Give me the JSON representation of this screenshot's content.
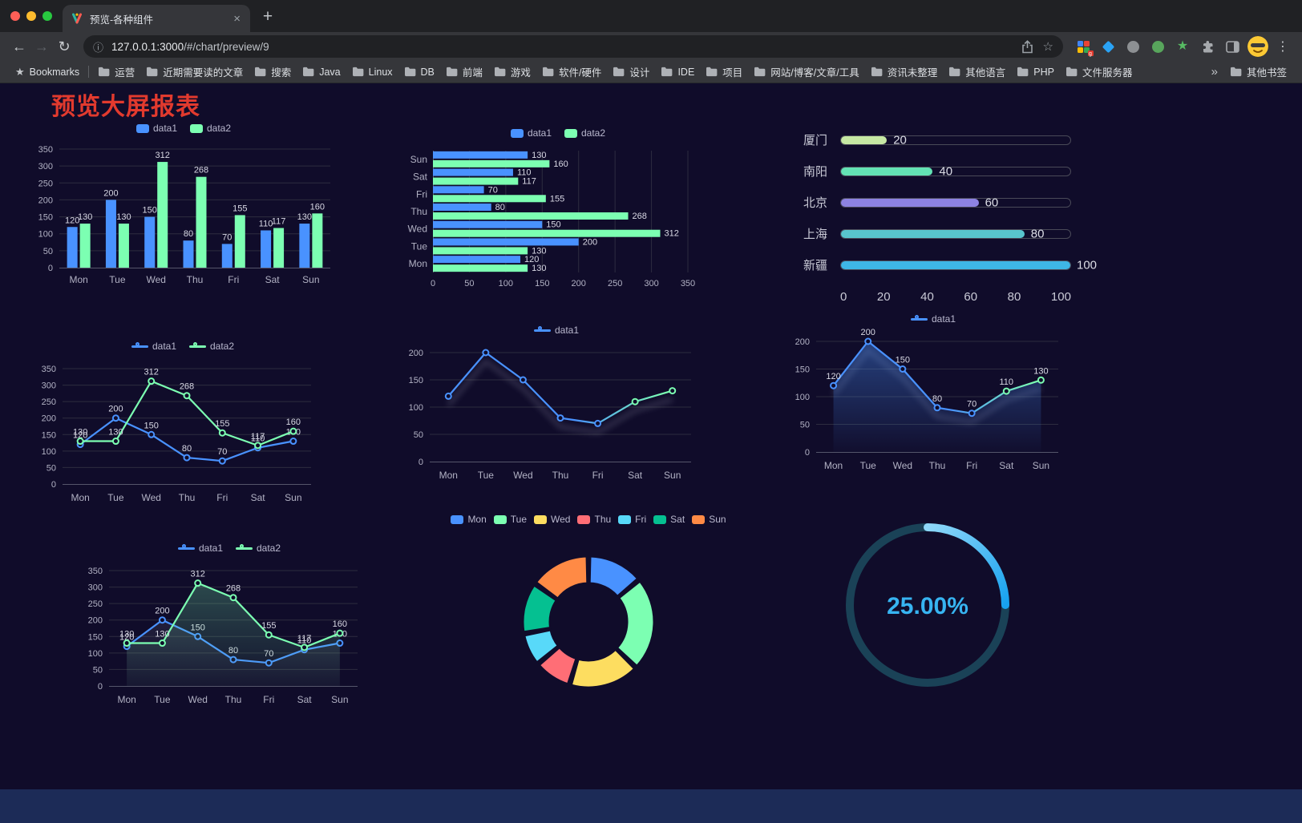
{
  "window": {
    "tab": {
      "title": "预览-各种组件"
    },
    "toolbar": {
      "url_host": "127.0.0.1:3000",
      "url_path": "/#/chart/preview/9",
      "extension_badge": "g"
    },
    "bookmarks_bar": {
      "root_label": "Bookmarks",
      "folders": [
        "运营",
        "近期需要读的文章",
        "搜索",
        "Java",
        "Linux",
        "DB",
        "前端",
        "游戏",
        "软件/硬件",
        "设计",
        "IDE",
        "项目",
        "网站/博客/文章/工具",
        "资讯未整理",
        "其他语言",
        "PHP",
        "文件服务器"
      ],
      "overflow_chevron": "»",
      "other_bookmarks_label": "其他书签"
    }
  },
  "icons": {
    "back": "←",
    "forward": "→",
    "reload": "↻",
    "info": "ⓘ",
    "bookmark_star": "☆",
    "close_tab": "×",
    "new_tab": "+",
    "menu": "⋮",
    "bookmarks_star": "★"
  },
  "page": {
    "title": "预览大屏报表"
  },
  "colors": {
    "title_red": "#e23a2e",
    "page_bg": "#100c2a",
    "footer_band": "#1c2b57",
    "series_blue": "#4992ff",
    "series_green": "#7cffb2",
    "grid": "#2d2c3f",
    "axis_line": "#55556a",
    "axis_text": "#b2b2c4",
    "label_text": "#d8d8e4",
    "legend_text": "#b9b8ce"
  },
  "chart_data": [
    {
      "id": "grouped-bar",
      "type": "bar",
      "orientation": "vertical",
      "categories": [
        "Mon",
        "Tue",
        "Wed",
        "Thu",
        "Fri",
        "Sat",
        "Sun"
      ],
      "series": [
        {
          "name": "data1",
          "color": "#4992ff",
          "values": [
            120,
            200,
            150,
            80,
            70,
            110,
            130
          ]
        },
        {
          "name": "data2",
          "color": "#7cffb2",
          "values": [
            130,
            130,
            312,
            268,
            155,
            117,
            160
          ]
        }
      ],
      "ylim": [
        0,
        350
      ],
      "ytick": 50,
      "legend_position": "top",
      "grid": true
    },
    {
      "id": "horizontal-bar",
      "type": "bar",
      "orientation": "horizontal",
      "categories_top_to_bottom": [
        "Sun",
        "Sat",
        "Fri",
        "Thu",
        "Wed",
        "Tue",
        "Mon"
      ],
      "series": [
        {
          "name": "data1",
          "color": "#4992ff",
          "values": [
            130,
            110,
            70,
            80,
            150,
            200,
            120
          ]
        },
        {
          "name": "data2",
          "color": "#7cffb2",
          "values": [
            160,
            117,
            155,
            268,
            312,
            130,
            130
          ]
        }
      ],
      "xlim": [
        0,
        350
      ],
      "xtick": 50,
      "legend_position": "top",
      "grid": true
    },
    {
      "id": "city-progress",
      "type": "bar",
      "orientation": "horizontal-progress",
      "items": [
        {
          "label": "厦门",
          "value": 20,
          "color": "#c6e8a4"
        },
        {
          "label": "南阳",
          "value": 40,
          "color": "#63e2b4"
        },
        {
          "label": "北京",
          "value": 60,
          "color": "#8d82e2"
        },
        {
          "label": "上海",
          "value": 80,
          "color": "#58c5cd"
        },
        {
          "label": "新疆",
          "value": 100,
          "color": "#3eb6e6"
        }
      ],
      "xlim": [
        0,
        100
      ],
      "ticks": [
        0,
        20,
        40,
        60,
        80,
        100
      ]
    },
    {
      "id": "dual-line",
      "type": "line",
      "categories": [
        "Mon",
        "Tue",
        "Wed",
        "Thu",
        "Fri",
        "Sat",
        "Sun"
      ],
      "series": [
        {
          "name": "data1",
          "color": "#4992ff",
          "values": [
            120,
            200,
            150,
            80,
            70,
            110,
            130
          ],
          "labels": true
        },
        {
          "name": "data2",
          "color": "#7cffb2",
          "values": [
            130,
            130,
            312,
            268,
            155,
            117,
            160
          ],
          "labels": true
        }
      ],
      "ylim": [
        0,
        350
      ],
      "ytick": 50,
      "legend_position": "top",
      "grid": true
    },
    {
      "id": "gradient-line",
      "type": "line",
      "categories": [
        "Mon",
        "Tue",
        "Wed",
        "Thu",
        "Fri",
        "Sat",
        "Sun"
      ],
      "series": [
        {
          "name": "data1",
          "gradient": [
            "#4992ff",
            "#7cffb2"
          ],
          "values": [
            120,
            200,
            150,
            80,
            70,
            110,
            130
          ],
          "labels": false,
          "shadow": true
        }
      ],
      "ylim": [
        0,
        200
      ],
      "ytick": 50,
      "legend_position": "top",
      "grid": true
    },
    {
      "id": "area-line",
      "type": "line",
      "categories": [
        "Mon",
        "Tue",
        "Wed",
        "Thu",
        "Fri",
        "Sat",
        "Sun"
      ],
      "series": [
        {
          "name": "data1",
          "gradient": [
            "#4992ff",
            "#7cffb2"
          ],
          "values": [
            120,
            200,
            150,
            80,
            70,
            110,
            130
          ],
          "labels": true,
          "shadow": true,
          "area": [
            "rgba(73,146,255,0.40)",
            "rgba(73,146,255,0.02)"
          ]
        }
      ],
      "ylim": [
        0,
        200
      ],
      "ytick": 50,
      "legend_position": "top",
      "grid": true
    },
    {
      "id": "dual-line-area",
      "type": "line",
      "categories": [
        "Mon",
        "Tue",
        "Wed",
        "Thu",
        "Fri",
        "Sat",
        "Sun"
      ],
      "series": [
        {
          "name": "data1",
          "color": "#4992ff",
          "values": [
            120,
            200,
            150,
            80,
            70,
            110,
            130
          ],
          "labels": true,
          "area": [
            "rgba(197,203,221,0.16)",
            "rgba(197,203,221,0.02)"
          ]
        },
        {
          "name": "data2",
          "color": "#7cffb2",
          "values": [
            130,
            130,
            312,
            268,
            155,
            117,
            160
          ],
          "labels": true,
          "area": [
            "rgba(124,255,178,0.28)",
            "rgba(124,255,178,0.03)"
          ]
        }
      ],
      "ylim": [
        0,
        350
      ],
      "ytick": 50,
      "legend_position": "top",
      "grid": true
    },
    {
      "id": "donut",
      "type": "pie",
      "donut": true,
      "slices": [
        {
          "label": "Mon",
          "value": 120,
          "color": "#4992ff"
        },
        {
          "label": "Tue",
          "value": 200,
          "color": "#7cffb2"
        },
        {
          "label": "Wed",
          "value": 150,
          "color": "#fddd60"
        },
        {
          "label": "Thu",
          "value": 80,
          "color": "#ff6e76"
        },
        {
          "label": "Fri",
          "value": 70,
          "color": "#58d9f9"
        },
        {
          "label": "Sat",
          "value": 110,
          "color": "#05c091"
        },
        {
          "label": "Sun",
          "value": 130,
          "color": "#ff8a45"
        }
      ],
      "legend_position": "top"
    },
    {
      "id": "gauge",
      "type": "gauge",
      "percent": 25,
      "value_label": "25.00%",
      "progress_colors": [
        "#8fd8f8",
        "#17a2f0"
      ],
      "track_color": "#1a4257",
      "text_color": "#37b4f1"
    }
  ]
}
